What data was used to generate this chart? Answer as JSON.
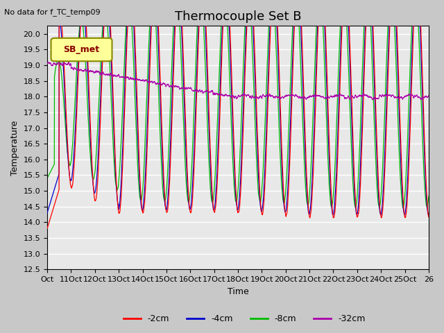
{
  "title": "Thermocouple Set B",
  "subtitle": "No data for f_TC_temp09",
  "xlabel": "Time",
  "ylabel": "Temperature",
  "ylim": [
    12.5,
    20.25
  ],
  "legend_labels": [
    "-2cm",
    "-4cm",
    "-8cm",
    "-32cm"
  ],
  "line_colors": [
    "#ff0000",
    "#0000cc",
    "#00bb00",
    "#aa00aa"
  ],
  "plot_bg": "#e8e8e8",
  "fig_bg": "#c8c8c8",
  "grid_color": "#ffffff",
  "legend_box_facecolor": "#ffff99",
  "legend_box_edgecolor": "#888800",
  "sb_met_label": "SB_met",
  "title_fontsize": 13,
  "label_fontsize": 9,
  "tick_fontsize": 8,
  "xtick_labels": [
    "Oct 11",
    "Oct 12",
    "Oct 13",
    "Oct 14",
    "Oct 15",
    "Oct 16",
    "Oct 17",
    "Oct 18",
    "Oct 19",
    "Oct 20",
    "Oct 21",
    "Oct 22",
    "Oct 23",
    "Oct 24",
    "Oct 25",
    "Oct 26"
  ],
  "xtick_first": "Oct"
}
